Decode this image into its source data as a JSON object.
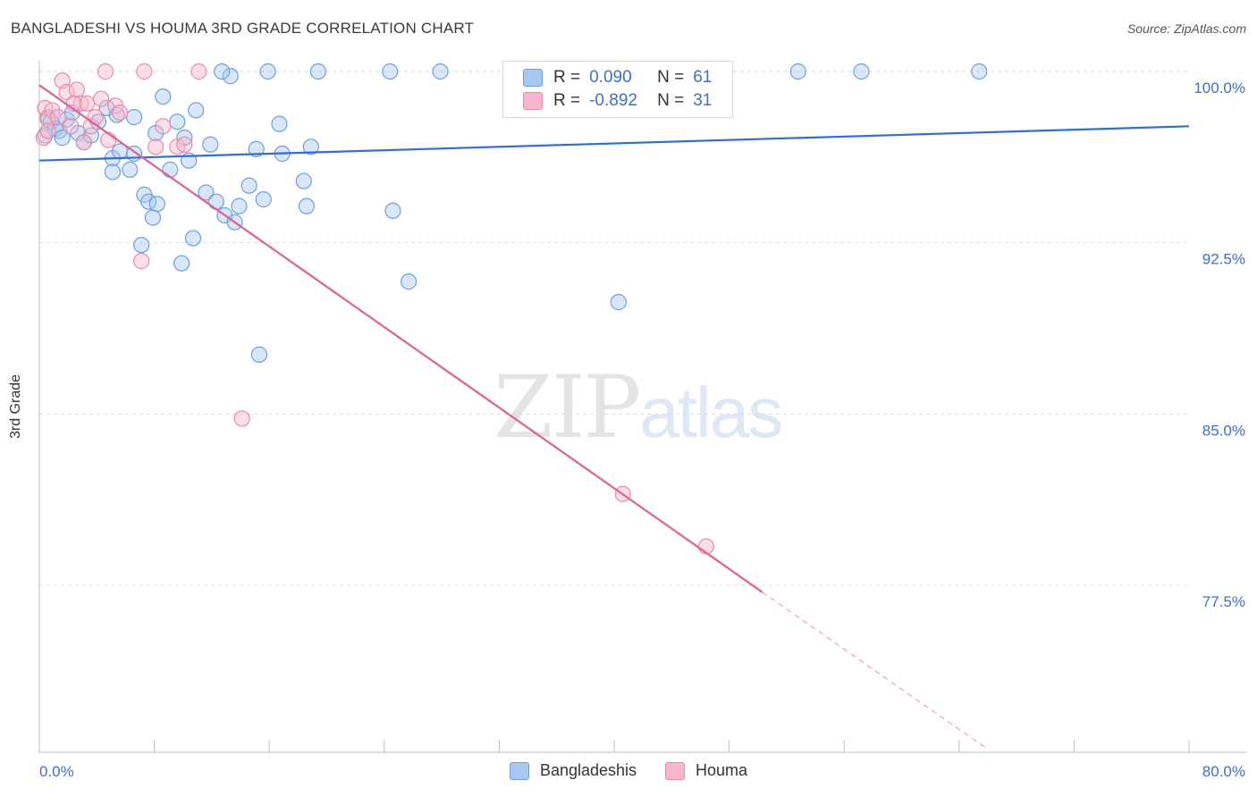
{
  "title": "BANGLADESHI VS HOUMA 3RD GRADE CORRELATION CHART",
  "source": "Source: ZipAtlas.com",
  "watermark": {
    "zip": "ZIP",
    "atlas": "atlas"
  },
  "legend": {
    "rows": [
      {
        "r_label": "R =",
        "r_value": "0.090",
        "n_label": "N =",
        "n_value": "61",
        "color": "#aac8ef"
      },
      {
        "r_label": "R =",
        "r_value": "-0.892",
        "n_label": "N =",
        "n_value": "31",
        "color": "#f7b7cb"
      }
    ]
  },
  "chart_data": {
    "type": "scatter",
    "title": "BANGLADESHI VS HOUMA 3RD GRADE CORRELATION CHART",
    "xlabel": "",
    "ylabel": "3rd Grade",
    "xlim": [
      0,
      80
    ],
    "ylim": [
      70.0,
      101.0
    ],
    "x_tick_labels": [
      "0.0%",
      "80.0%"
    ],
    "y_ticks": [
      77.5,
      85.0,
      92.5,
      100.0
    ],
    "y_tick_labels": [
      "77.5%",
      "85.0%",
      "92.5%",
      "100.0%"
    ],
    "grid": "horizontal dashed",
    "series": [
      {
        "name": "Bangladeshis",
        "color": "#6a9fe0",
        "fill": "#aac8ef",
        "trend": {
          "x": [
            0,
            80
          ],
          "y": [
            96.1,
            97.6
          ],
          "color": "#2f6fcf"
        },
        "points": [
          [
            0.4,
            97.2
          ],
          [
            0.6,
            98.0
          ],
          [
            0.8,
            97.8
          ],
          [
            1.1,
            97.5
          ],
          [
            1.4,
            97.4
          ],
          [
            1.6,
            97.1
          ],
          [
            1.9,
            97.9
          ],
          [
            2.3,
            98.2
          ],
          [
            2.7,
            97.3
          ],
          [
            3.1,
            96.9
          ],
          [
            3.6,
            97.2
          ],
          [
            4.1,
            97.8
          ],
          [
            4.7,
            98.4
          ],
          [
            5.1,
            96.2
          ],
          [
            5.4,
            98.1
          ],
          [
            5.1,
            95.6
          ],
          [
            5.6,
            96.5
          ],
          [
            6.3,
            95.7
          ],
          [
            6.6,
            96.4
          ],
          [
            7.1,
            92.4
          ],
          [
            7.3,
            94.6
          ],
          [
            7.6,
            94.3
          ],
          [
            7.9,
            93.6
          ],
          [
            8.2,
            94.2
          ],
          [
            8.1,
            97.3
          ],
          [
            8.6,
            98.9
          ],
          [
            9.1,
            95.7
          ],
          [
            9.6,
            97.8
          ],
          [
            9.9,
            91.6
          ],
          [
            10.1,
            97.1
          ],
          [
            10.4,
            96.1
          ],
          [
            10.7,
            92.7
          ],
          [
            10.9,
            98.3
          ],
          [
            11.6,
            94.7
          ],
          [
            11.9,
            96.8
          ],
          [
            12.3,
            94.3
          ],
          [
            12.9,
            93.7
          ],
          [
            13.3,
            99.8
          ],
          [
            13.6,
            93.4
          ],
          [
            13.9,
            94.1
          ],
          [
            12.7,
            100.0
          ],
          [
            14.6,
            95.0
          ],
          [
            15.1,
            96.6
          ],
          [
            15.3,
            87.6
          ],
          [
            15.6,
            94.4
          ],
          [
            15.9,
            100.0
          ],
          [
            16.9,
            96.4
          ],
          [
            16.7,
            97.7
          ],
          [
            18.4,
            95.2
          ],
          [
            18.6,
            94.1
          ],
          [
            18.9,
            96.7
          ],
          [
            19.4,
            100.0
          ],
          [
            24.4,
            100.0
          ],
          [
            24.6,
            93.9
          ],
          [
            25.7,
            90.8
          ],
          [
            27.9,
            100.0
          ],
          [
            40.3,
            89.9
          ],
          [
            52.8,
            100.0
          ],
          [
            57.2,
            100.0
          ],
          [
            65.4,
            100.0
          ],
          [
            6.6,
            98.0
          ]
        ]
      },
      {
        "name": "Houma",
        "color": "#e88aaa",
        "fill": "#f7b7cb",
        "trend": {
          "x": [
            0,
            50.3
          ],
          "y": [
            99.4,
            77.2
          ],
          "color": "#e0608f"
        },
        "trend_ext": {
          "x": [
            50.3,
            65.8
          ],
          "y": [
            77.2,
            70.4
          ]
        },
        "points": [
          [
            0.3,
            97.1
          ],
          [
            0.4,
            98.4
          ],
          [
            0.6,
            97.9
          ],
          [
            0.9,
            98.3
          ],
          [
            1.3,
            98.0
          ],
          [
            1.6,
            99.6
          ],
          [
            1.9,
            99.1
          ],
          [
            2.2,
            97.6
          ],
          [
            2.6,
            99.2
          ],
          [
            2.9,
            98.6
          ],
          [
            3.3,
            98.6
          ],
          [
            3.6,
            97.6
          ],
          [
            3.9,
            98.0
          ],
          [
            4.3,
            98.8
          ],
          [
            4.6,
            100.0
          ],
          [
            4.8,
            97.0
          ],
          [
            5.3,
            98.5
          ],
          [
            5.6,
            98.2
          ],
          [
            7.1,
            91.7
          ],
          [
            7.3,
            100.0
          ],
          [
            8.1,
            96.7
          ],
          [
            8.6,
            97.6
          ],
          [
            9.6,
            96.7
          ],
          [
            11.1,
            100.0
          ],
          [
            14.1,
            84.8
          ],
          [
            40.6,
            81.5
          ],
          [
            46.4,
            79.2
          ],
          [
            0.6,
            97.4
          ],
          [
            2.4,
            98.6
          ],
          [
            3.1,
            96.9
          ],
          [
            10.1,
            96.8
          ]
        ]
      }
    ]
  }
}
